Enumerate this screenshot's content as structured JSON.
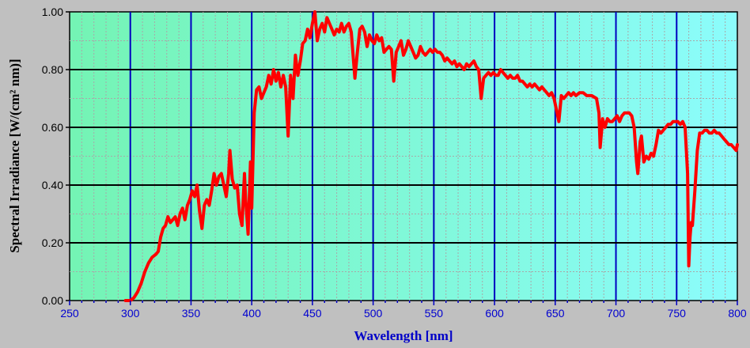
{
  "chart_data": {
    "type": "line",
    "xlabel": "Wavelength [nm]",
    "ylabel": "Spectral Irradiance [W/(cm² nm)]",
    "xlim": [
      250,
      800
    ],
    "ylim": [
      0,
      1.0
    ],
    "x_ticks": [
      "250",
      "300",
      "350",
      "400",
      "450",
      "500",
      "550",
      "600",
      "650",
      "700",
      "750",
      "800"
    ],
    "y_ticks": [
      "0.00",
      "0.20",
      "0.40",
      "0.60",
      "0.80",
      "1.00"
    ],
    "grid": true,
    "legend": "none",
    "series": [
      {
        "color": "#ff0000",
        "points": [
          [
            296,
            0.0
          ],
          [
            300,
            0.0
          ],
          [
            303,
            0.01
          ],
          [
            306,
            0.03
          ],
          [
            309,
            0.06
          ],
          [
            312,
            0.1
          ],
          [
            315,
            0.13
          ],
          [
            318,
            0.15
          ],
          [
            321,
            0.16
          ],
          [
            323,
            0.17
          ],
          [
            325,
            0.22
          ],
          [
            327,
            0.25
          ],
          [
            329,
            0.26
          ],
          [
            331,
            0.29
          ],
          [
            333,
            0.27
          ],
          [
            335,
            0.28
          ],
          [
            337,
            0.29
          ],
          [
            339,
            0.26
          ],
          [
            341,
            0.3
          ],
          [
            343,
            0.32
          ],
          [
            345,
            0.28
          ],
          [
            347,
            0.33
          ],
          [
            349,
            0.35
          ],
          [
            351,
            0.38
          ],
          [
            353,
            0.36
          ],
          [
            355,
            0.4
          ],
          [
            357,
            0.31
          ],
          [
            359,
            0.25
          ],
          [
            361,
            0.33
          ],
          [
            363,
            0.35
          ],
          [
            365,
            0.33
          ],
          [
            367,
            0.38
          ],
          [
            369,
            0.44
          ],
          [
            371,
            0.4
          ],
          [
            373,
            0.43
          ],
          [
            375,
            0.44
          ],
          [
            377,
            0.4
          ],
          [
            379,
            0.36
          ],
          [
            381,
            0.44
          ],
          [
            382,
            0.52
          ],
          [
            384,
            0.42
          ],
          [
            386,
            0.39
          ],
          [
            388,
            0.4
          ],
          [
            390,
            0.3
          ],
          [
            392,
            0.26
          ],
          [
            394,
            0.44
          ],
          [
            395,
            0.35
          ],
          [
            397,
            0.23
          ],
          [
            399,
            0.48
          ],
          [
            400,
            0.32
          ],
          [
            402,
            0.65
          ],
          [
            404,
            0.73
          ],
          [
            406,
            0.74
          ],
          [
            408,
            0.7
          ],
          [
            410,
            0.72
          ],
          [
            412,
            0.74
          ],
          [
            414,
            0.78
          ],
          [
            416,
            0.75
          ],
          [
            418,
            0.8
          ],
          [
            420,
            0.76
          ],
          [
            422,
            0.79
          ],
          [
            424,
            0.74
          ],
          [
            426,
            0.78
          ],
          [
            428,
            0.74
          ],
          [
            430,
            0.57
          ],
          [
            432,
            0.78
          ],
          [
            434,
            0.7
          ],
          [
            436,
            0.85
          ],
          [
            438,
            0.78
          ],
          [
            440,
            0.83
          ],
          [
            442,
            0.89
          ],
          [
            444,
            0.9
          ],
          [
            446,
            0.94
          ],
          [
            448,
            0.91
          ],
          [
            450,
            0.96
          ],
          [
            452,
            1.0
          ],
          [
            454,
            0.9
          ],
          [
            456,
            0.94
          ],
          [
            458,
            0.96
          ],
          [
            460,
            0.93
          ],
          [
            462,
            0.98
          ],
          [
            464,
            0.96
          ],
          [
            466,
            0.94
          ],
          [
            468,
            0.92
          ],
          [
            470,
            0.94
          ],
          [
            472,
            0.93
          ],
          [
            474,
            0.96
          ],
          [
            476,
            0.93
          ],
          [
            478,
            0.95
          ],
          [
            480,
            0.96
          ],
          [
            482,
            0.93
          ],
          [
            485,
            0.77
          ],
          [
            487,
            0.86
          ],
          [
            489,
            0.94
          ],
          [
            491,
            0.95
          ],
          [
            493,
            0.93
          ],
          [
            495,
            0.88
          ],
          [
            497,
            0.92
          ],
          [
            499,
            0.9
          ],
          [
            501,
            0.89
          ],
          [
            503,
            0.92
          ],
          [
            505,
            0.9
          ],
          [
            507,
            0.91
          ],
          [
            509,
            0.86
          ],
          [
            511,
            0.87
          ],
          [
            513,
            0.88
          ],
          [
            515,
            0.87
          ],
          [
            517,
            0.76
          ],
          [
            519,
            0.86
          ],
          [
            521,
            0.88
          ],
          [
            523,
            0.9
          ],
          [
            525,
            0.85
          ],
          [
            527,
            0.87
          ],
          [
            529,
            0.9
          ],
          [
            531,
            0.88
          ],
          [
            533,
            0.86
          ],
          [
            535,
            0.84
          ],
          [
            537,
            0.85
          ],
          [
            539,
            0.88
          ],
          [
            541,
            0.86
          ],
          [
            543,
            0.85
          ],
          [
            545,
            0.86
          ],
          [
            547,
            0.87
          ],
          [
            549,
            0.86
          ],
          [
            551,
            0.87
          ],
          [
            553,
            0.86
          ],
          [
            555,
            0.86
          ],
          [
            557,
            0.85
          ],
          [
            559,
            0.83
          ],
          [
            561,
            0.84
          ],
          [
            563,
            0.83
          ],
          [
            565,
            0.82
          ],
          [
            567,
            0.83
          ],
          [
            569,
            0.81
          ],
          [
            571,
            0.82
          ],
          [
            573,
            0.81
          ],
          [
            575,
            0.8
          ],
          [
            577,
            0.82
          ],
          [
            579,
            0.81
          ],
          [
            581,
            0.82
          ],
          [
            583,
            0.83
          ],
          [
            585,
            0.81
          ],
          [
            587,
            0.8
          ],
          [
            589,
            0.7
          ],
          [
            591,
            0.77
          ],
          [
            593,
            0.78
          ],
          [
            595,
            0.79
          ],
          [
            597,
            0.78
          ],
          [
            599,
            0.79
          ],
          [
            601,
            0.78
          ],
          [
            603,
            0.78
          ],
          [
            605,
            0.8
          ],
          [
            607,
            0.79
          ],
          [
            609,
            0.78
          ],
          [
            611,
            0.77
          ],
          [
            613,
            0.78
          ],
          [
            615,
            0.77
          ],
          [
            617,
            0.77
          ],
          [
            619,
            0.78
          ],
          [
            621,
            0.76
          ],
          [
            623,
            0.76
          ],
          [
            625,
            0.75
          ],
          [
            627,
            0.74
          ],
          [
            629,
            0.75
          ],
          [
            631,
            0.74
          ],
          [
            633,
            0.75
          ],
          [
            635,
            0.74
          ],
          [
            637,
            0.73
          ],
          [
            639,
            0.74
          ],
          [
            641,
            0.73
          ],
          [
            643,
            0.72
          ],
          [
            645,
            0.71
          ],
          [
            647,
            0.72
          ],
          [
            649,
            0.7
          ],
          [
            651,
            0.66
          ],
          [
            653,
            0.62
          ],
          [
            655,
            0.71
          ],
          [
            657,
            0.7
          ],
          [
            659,
            0.71
          ],
          [
            661,
            0.72
          ],
          [
            663,
            0.71
          ],
          [
            665,
            0.72
          ],
          [
            667,
            0.71
          ],
          [
            670,
            0.72
          ],
          [
            673,
            0.72
          ],
          [
            676,
            0.71
          ],
          [
            680,
            0.71
          ],
          [
            684,
            0.7
          ],
          [
            686,
            0.65
          ],
          [
            687,
            0.53
          ],
          [
            689,
            0.63
          ],
          [
            691,
            0.6
          ],
          [
            693,
            0.63
          ],
          [
            695,
            0.62
          ],
          [
            697,
            0.62
          ],
          [
            699,
            0.63
          ],
          [
            701,
            0.64
          ],
          [
            703,
            0.62
          ],
          [
            705,
            0.64
          ],
          [
            707,
            0.65
          ],
          [
            709,
            0.65
          ],
          [
            711,
            0.65
          ],
          [
            713,
            0.64
          ],
          [
            715,
            0.6
          ],
          [
            717,
            0.48
          ],
          [
            718,
            0.44
          ],
          [
            720,
            0.55
          ],
          [
            721,
            0.57
          ],
          [
            723,
            0.48
          ],
          [
            725,
            0.5
          ],
          [
            727,
            0.49
          ],
          [
            729,
            0.51
          ],
          [
            731,
            0.5
          ],
          [
            733,
            0.54
          ],
          [
            735,
            0.59
          ],
          [
            737,
            0.58
          ],
          [
            739,
            0.59
          ],
          [
            741,
            0.6
          ],
          [
            743,
            0.61
          ],
          [
            745,
            0.61
          ],
          [
            747,
            0.62
          ],
          [
            749,
            0.62
          ],
          [
            751,
            0.62
          ],
          [
            753,
            0.61
          ],
          [
            755,
            0.62
          ],
          [
            757,
            0.6
          ],
          [
            759,
            0.44
          ],
          [
            760,
            0.12
          ],
          [
            761,
            0.22
          ],
          [
            762,
            0.27
          ],
          [
            763,
            0.26
          ],
          [
            765,
            0.38
          ],
          [
            767,
            0.52
          ],
          [
            769,
            0.58
          ],
          [
            771,
            0.58
          ],
          [
            773,
            0.59
          ],
          [
            775,
            0.59
          ],
          [
            777,
            0.58
          ],
          [
            779,
            0.58
          ],
          [
            781,
            0.59
          ],
          [
            783,
            0.58
          ],
          [
            785,
            0.58
          ],
          [
            787,
            0.57
          ],
          [
            789,
            0.56
          ],
          [
            791,
            0.55
          ],
          [
            793,
            0.54
          ],
          [
            795,
            0.54
          ],
          [
            797,
            0.53
          ],
          [
            799,
            0.52
          ],
          [
            800,
            0.54
          ]
        ]
      }
    ]
  }
}
